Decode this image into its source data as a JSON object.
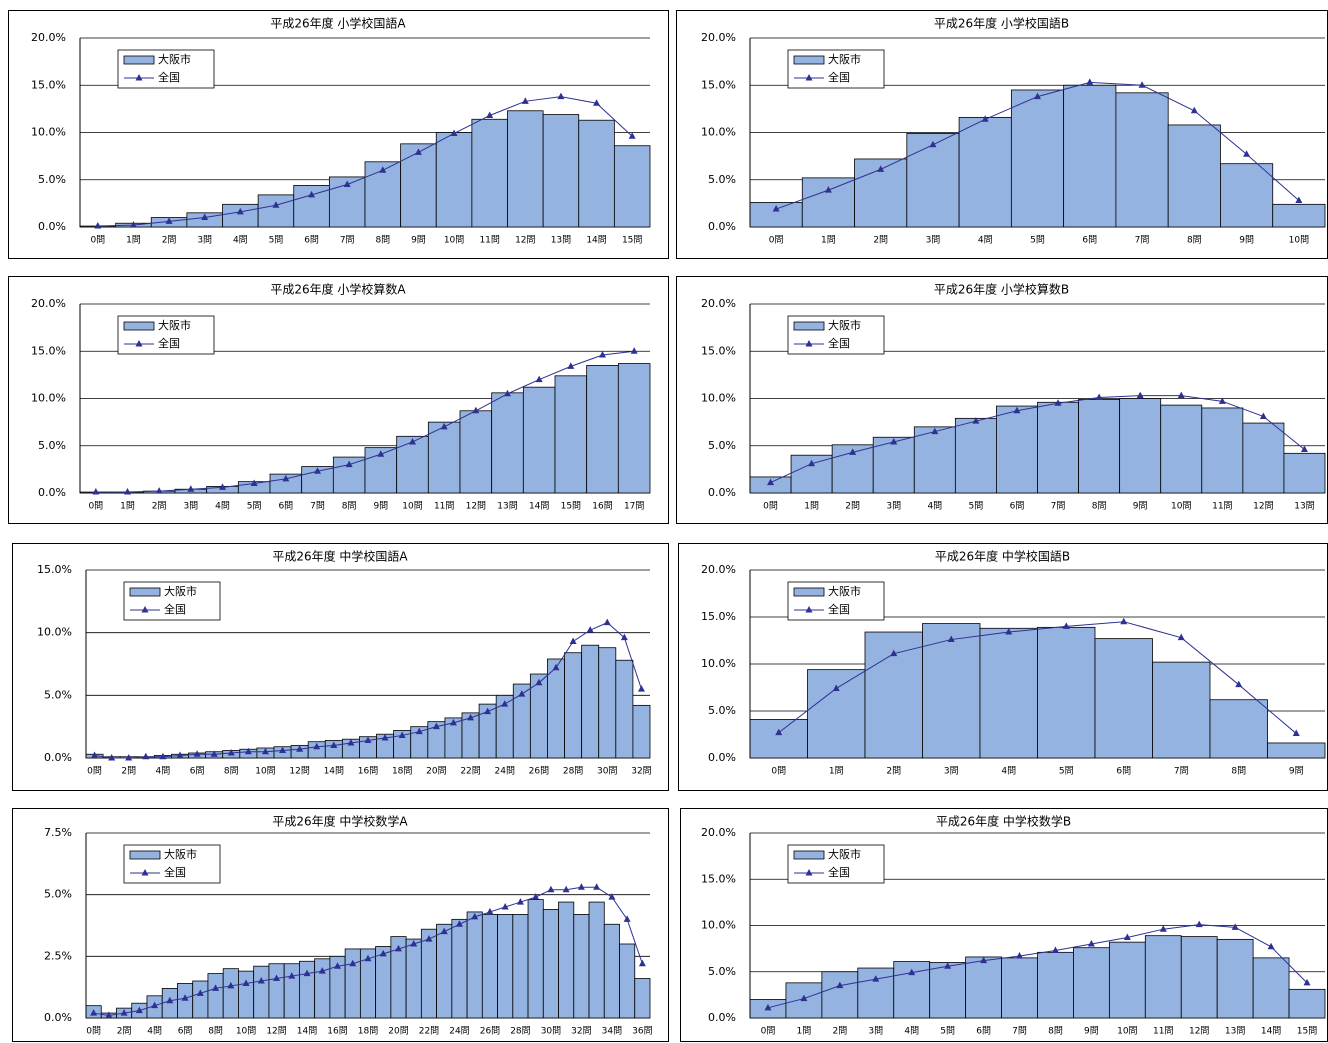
{
  "chart_data": [
    {
      "type": "combo",
      "title": "平成26年度  小学校国語A",
      "categories": [
        "0問",
        "1問",
        "2問",
        "3問",
        "4問",
        "5問",
        "6問",
        "7問",
        "8問",
        "9問",
        "10問",
        "11問",
        "12問",
        "13問",
        "14問",
        "15問"
      ],
      "series": [
        {
          "name": "大阪市",
          "type": "bar",
          "color": "#95b3e0",
          "values": [
            0.1,
            0.4,
            1.0,
            1.5,
            2.4,
            3.4,
            4.4,
            5.3,
            6.9,
            8.8,
            10.0,
            11.4,
            12.3,
            11.9,
            11.3,
            8.6
          ]
        },
        {
          "name": "全国",
          "type": "line",
          "color": "#2e3192",
          "values": [
            0.1,
            0.2,
            0.6,
            1.0,
            1.6,
            2.3,
            3.4,
            4.5,
            6.0,
            7.9,
            9.9,
            11.8,
            13.3,
            13.8,
            13.1,
            9.6
          ]
        }
      ],
      "ylim": [
        0,
        20
      ],
      "yticks": [
        {
          "value": 0,
          "label": "0.0%"
        },
        {
          "value": 5,
          "label": "5.0%"
        },
        {
          "value": 10,
          "label": "10.0%"
        },
        {
          "value": 15,
          "label": "15.0%"
        },
        {
          "value": 20,
          "label": "20.0%"
        }
      ],
      "grid": true
    },
    {
      "type": "combo",
      "title": "平成26年度  小学校国語B",
      "categories": [
        "0問",
        "1問",
        "2問",
        "3問",
        "4問",
        "5問",
        "6問",
        "7問",
        "8問",
        "9問",
        "10問"
      ],
      "series": [
        {
          "name": "大阪市",
          "type": "bar",
          "color": "#95b3e0",
          "values": [
            2.6,
            5.2,
            7.2,
            9.9,
            11.6,
            14.5,
            15.0,
            14.2,
            10.8,
            6.7,
            2.4
          ]
        },
        {
          "name": "全国",
          "type": "line",
          "color": "#2e3192",
          "values": [
            1.9,
            3.9,
            6.1,
            8.7,
            11.4,
            13.8,
            15.3,
            15.0,
            12.3,
            7.7,
            2.8
          ]
        }
      ],
      "ylim": [
        0,
        20
      ],
      "yticks": [
        {
          "value": 0,
          "label": "0.0%"
        },
        {
          "value": 5,
          "label": "5.0%"
        },
        {
          "value": 10,
          "label": "10.0%"
        },
        {
          "value": 15,
          "label": "15.0%"
        },
        {
          "value": 20,
          "label": "20.0%"
        }
      ],
      "grid": true
    },
    {
      "type": "combo",
      "title": "平成26年度  小学校算数A",
      "categories": [
        "0問",
        "1問",
        "2問",
        "3問",
        "4問",
        "5問",
        "6問",
        "7問",
        "8問",
        "9問",
        "10問",
        "11問",
        "12問",
        "13問",
        "14問",
        "15問",
        "16問",
        "17問"
      ],
      "series": [
        {
          "name": "大阪市",
          "type": "bar",
          "color": "#95b3e0",
          "values": [
            0.1,
            0.1,
            0.2,
            0.4,
            0.7,
            1.2,
            2.0,
            2.8,
            3.8,
            4.8,
            6.0,
            7.5,
            8.7,
            10.6,
            11.2,
            12.4,
            13.5,
            13.7
          ]
        },
        {
          "name": "全国",
          "type": "line",
          "color": "#2e3192",
          "values": [
            0.1,
            0.1,
            0.2,
            0.4,
            0.6,
            1.0,
            1.5,
            2.3,
            3.0,
            4.1,
            5.4,
            7.0,
            8.7,
            10.5,
            12.0,
            13.4,
            14.6,
            15.0
          ]
        }
      ],
      "ylim": [
        0,
        20
      ],
      "yticks": [
        {
          "value": 0,
          "label": "0.0%"
        },
        {
          "value": 5,
          "label": "5.0%"
        },
        {
          "value": 10,
          "label": "10.0%"
        },
        {
          "value": 15,
          "label": "15.0%"
        },
        {
          "value": 20,
          "label": "20.0%"
        }
      ],
      "grid": true
    },
    {
      "type": "combo",
      "title": "平成26年度  小学校算数B",
      "categories": [
        "0問",
        "1問",
        "2問",
        "3問",
        "4問",
        "5問",
        "6問",
        "7問",
        "8問",
        "9問",
        "10問",
        "11問",
        "12問",
        "13問"
      ],
      "series": [
        {
          "name": "大阪市",
          "type": "bar",
          "color": "#95b3e0",
          "values": [
            1.7,
            4.0,
            5.1,
            5.9,
            7.0,
            7.9,
            9.2,
            9.6,
            9.9,
            10.0,
            9.3,
            9.0,
            7.4,
            4.2
          ]
        },
        {
          "name": "全国",
          "type": "line",
          "color": "#2e3192",
          "values": [
            1.1,
            3.1,
            4.3,
            5.4,
            6.5,
            7.6,
            8.7,
            9.5,
            10.1,
            10.3,
            10.3,
            9.7,
            8.1,
            4.6
          ]
        }
      ],
      "ylim": [
        0,
        20
      ],
      "yticks": [
        {
          "value": 0,
          "label": "0.0%"
        },
        {
          "value": 5,
          "label": "5.0%"
        },
        {
          "value": 10,
          "label": "10.0%"
        },
        {
          "value": 15,
          "label": "15.0%"
        },
        {
          "value": 20,
          "label": "20.0%"
        }
      ],
      "grid": true
    },
    {
      "type": "combo",
      "title": "平成26年度  中学校国語A",
      "categories": [
        "0問",
        null,
        "2問",
        null,
        "4問",
        null,
        "6問",
        null,
        "8問",
        null,
        "10問",
        null,
        "12問",
        null,
        "14問",
        null,
        "16問",
        null,
        "18問",
        null,
        "20問",
        null,
        "22問",
        null,
        "24問",
        null,
        "26問",
        null,
        "28問",
        null,
        "30問",
        null,
        "32問"
      ],
      "series": [
        {
          "name": "大阪市",
          "type": "bar",
          "color": "#95b3e0",
          "values": [
            0.3,
            0.1,
            0.1,
            0.1,
            0.2,
            0.3,
            0.4,
            0.5,
            0.6,
            0.7,
            0.8,
            0.9,
            1.0,
            1.3,
            1.4,
            1.5,
            1.7,
            1.9,
            2.2,
            2.5,
            2.9,
            3.2,
            3.6,
            4.3,
            5.0,
            5.9,
            6.7,
            7.9,
            8.4,
            9.0,
            8.8,
            7.8,
            4.2
          ]
        },
        {
          "name": "全国",
          "type": "line",
          "color": "#2e3192",
          "values": [
            0.2,
            0.0,
            0.0,
            0.1,
            0.1,
            0.2,
            0.3,
            0.3,
            0.4,
            0.5,
            0.5,
            0.6,
            0.7,
            0.9,
            1.0,
            1.2,
            1.4,
            1.6,
            1.8,
            2.1,
            2.5,
            2.8,
            3.2,
            3.7,
            4.3,
            5.1,
            6.0,
            7.2,
            9.3,
            10.2,
            10.8,
            9.6,
            5.5
          ]
        }
      ],
      "ylim": [
        0,
        15
      ],
      "yticks": [
        {
          "value": 0,
          "label": "0.0%"
        },
        {
          "value": 5,
          "label": "5.0%"
        },
        {
          "value": 10,
          "label": "10.0%"
        },
        {
          "value": 15,
          "label": "15.0%"
        }
      ],
      "grid": true
    },
    {
      "type": "combo",
      "title": "平成26年度  中学校国語B",
      "categories": [
        "0問",
        "1問",
        "2問",
        "3問",
        "4問",
        "5問",
        "6問",
        "7問",
        "8問",
        "9問"
      ],
      "series": [
        {
          "name": "大阪市",
          "type": "bar",
          "color": "#95b3e0",
          "values": [
            4.1,
            9.4,
            13.4,
            14.3,
            13.8,
            13.9,
            12.7,
            10.2,
            6.2,
            1.6
          ]
        },
        {
          "name": "全国",
          "type": "line",
          "color": "#2e3192",
          "values": [
            2.7,
            7.4,
            11.1,
            12.6,
            13.4,
            14.0,
            14.5,
            12.8,
            7.8,
            2.6
          ]
        }
      ],
      "ylim": [
        0,
        20
      ],
      "yticks": [
        {
          "value": 0,
          "label": "0.0%"
        },
        {
          "value": 5,
          "label": "5.0%"
        },
        {
          "value": 10,
          "label": "10.0%"
        },
        {
          "value": 15,
          "label": "15.0%"
        },
        {
          "value": 20,
          "label": "20.0%"
        }
      ],
      "grid": true
    },
    {
      "type": "combo",
      "title": "平成26年度  中学校数学A",
      "categories": [
        "0問",
        null,
        "2問",
        null,
        "4問",
        null,
        "6問",
        null,
        "8問",
        null,
        "10問",
        null,
        "12問",
        null,
        "14問",
        null,
        "16問",
        null,
        "18問",
        null,
        "20問",
        null,
        "22問",
        null,
        "24問",
        null,
        "26問",
        null,
        "28問",
        null,
        "30問",
        null,
        "32問",
        null,
        "34問",
        null,
        "36問"
      ],
      "series": [
        {
          "name": "大阪市",
          "type": "bar",
          "color": "#95b3e0",
          "values": [
            0.5,
            0.2,
            0.4,
            0.6,
            0.9,
            1.2,
            1.4,
            1.5,
            1.8,
            2.0,
            1.9,
            2.1,
            2.2,
            2.2,
            2.3,
            2.4,
            2.5,
            2.8,
            2.8,
            2.9,
            3.3,
            3.2,
            3.6,
            3.8,
            4.0,
            4.3,
            4.2,
            4.2,
            4.2,
            4.8,
            4.4,
            4.7,
            4.2,
            4.7,
            3.8,
            3.0,
            1.6
          ]
        },
        {
          "name": "全国",
          "type": "line",
          "color": "#2e3192",
          "values": [
            0.2,
            0.1,
            0.2,
            0.3,
            0.5,
            0.7,
            0.8,
            1.0,
            1.2,
            1.3,
            1.4,
            1.5,
            1.6,
            1.7,
            1.8,
            1.9,
            2.1,
            2.2,
            2.4,
            2.6,
            2.8,
            3.0,
            3.2,
            3.5,
            3.8,
            4.1,
            4.3,
            4.5,
            4.7,
            4.9,
            5.2,
            5.2,
            5.3,
            5.3,
            4.9,
            4.0,
            2.2
          ]
        }
      ],
      "ylim": [
        0,
        7.5
      ],
      "yticks": [
        {
          "value": 0,
          "label": "0.0%"
        },
        {
          "value": 2.5,
          "label": "2.5%"
        },
        {
          "value": 5,
          "label": "5.0%"
        },
        {
          "value": 7.5,
          "label": "7.5%"
        }
      ],
      "grid": true
    },
    {
      "type": "combo",
      "title": "平成26年度  中学校数学B",
      "categories": [
        "0問",
        "1問",
        "2問",
        "3問",
        "4問",
        "5問",
        "6問",
        "7問",
        "8問",
        "9問",
        "10問",
        "11問",
        "12問",
        "13問",
        "14問",
        "15問"
      ],
      "series": [
        {
          "name": "大阪市",
          "type": "bar",
          "color": "#95b3e0",
          "values": [
            2.0,
            3.8,
            5.0,
            5.4,
            6.1,
            6.0,
            6.6,
            6.5,
            7.1,
            7.6,
            8.2,
            8.9,
            8.8,
            8.5,
            6.5,
            3.1
          ]
        },
        {
          "name": "全国",
          "type": "line",
          "color": "#2e3192",
          "values": [
            1.1,
            2.1,
            3.5,
            4.2,
            4.9,
            5.6,
            6.2,
            6.7,
            7.3,
            8.0,
            8.7,
            9.6,
            10.1,
            9.8,
            7.7,
            3.8
          ]
        }
      ],
      "ylim": [
        0,
        20
      ],
      "yticks": [
        {
          "value": 0,
          "label": "0.0%"
        },
        {
          "value": 5,
          "label": "5.0%"
        },
        {
          "value": 10,
          "label": "10.0%"
        },
        {
          "value": 15,
          "label": "15.0%"
        },
        {
          "value": 20,
          "label": "20.0%"
        }
      ],
      "grid": true
    }
  ]
}
